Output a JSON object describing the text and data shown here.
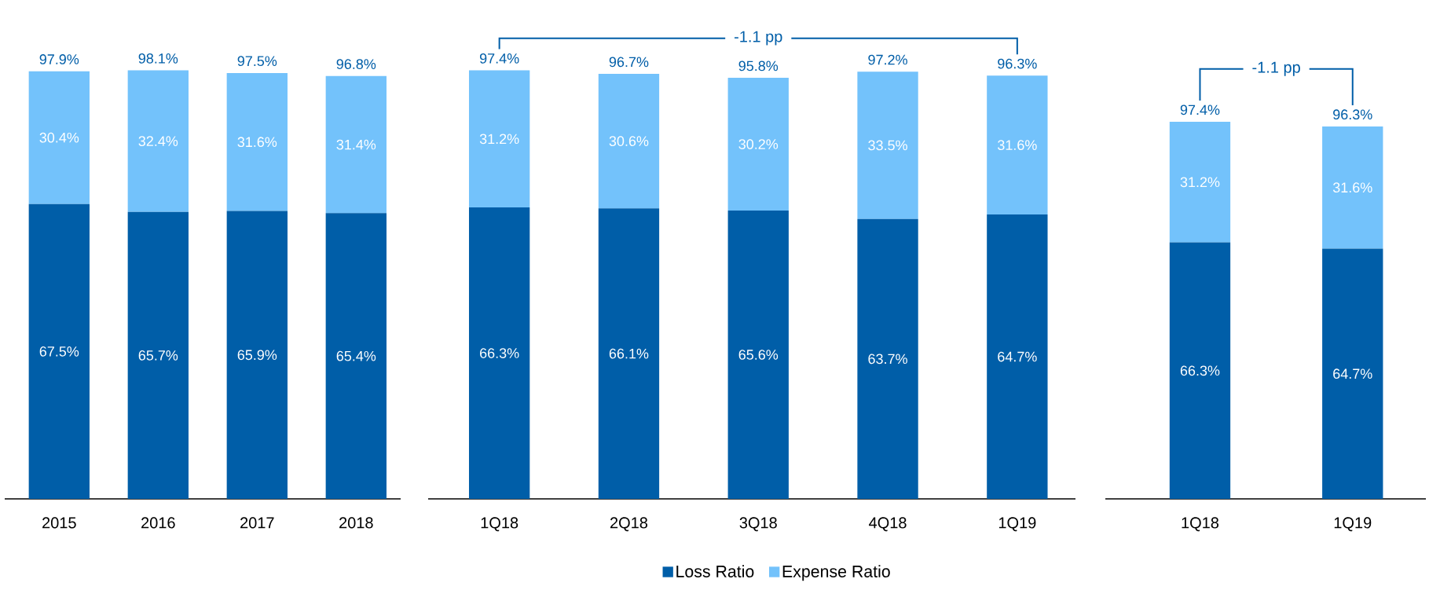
{
  "chart_data": [
    {
      "type": "bar",
      "stacked": true,
      "legend": false,
      "categories": [
        "2015",
        "2016",
        "2017",
        "2018"
      ],
      "series": [
        {
          "color": "#005ea8",
          "values": [
            67.5,
            65.7,
            65.9,
            65.4
          ],
          "value_labels": [
            "67.5%",
            "65.7%",
            "65.9%",
            "65.4%"
          ]
        },
        {
          "color": "#73c2fb",
          "values": [
            30.4,
            32.4,
            31.6,
            31.4
          ],
          "value_labels": [
            "30.4%",
            "32.4%",
            "31.6%",
            "31.4%"
          ]
        }
      ],
      "totals": [
        "97.9%",
        "98.1%",
        "97.5%",
        "96.8%"
      ]
    },
    {
      "type": "bar",
      "stacked": true,
      "legend": "bottom",
      "categories": [
        "1Q18",
        "2Q18",
        "3Q18",
        "4Q18",
        "1Q19"
      ],
      "series": [
        {
          "name": "Loss Ratio",
          "color": "#005ea8",
          "values": [
            66.3,
            66.1,
            65.6,
            63.7,
            64.7
          ],
          "value_labels": [
            "66.3%",
            "66.1%",
            "65.6%",
            "63.7%",
            "64.7%"
          ]
        },
        {
          "name": "Expense Ratio",
          "color": "#73c2fb",
          "values": [
            31.2,
            30.6,
            30.2,
            33.5,
            31.6
          ],
          "value_labels": [
            "31.2%",
            "30.6%",
            "30.2%",
            "33.5%",
            "31.6%"
          ]
        }
      ],
      "totals": [
        "97.4%",
        "96.7%",
        "95.8%",
        "97.2%",
        "96.3%"
      ],
      "annotations": [
        "-1.1 pp"
      ]
    },
    {
      "type": "bar",
      "stacked": true,
      "legend": false,
      "categories": [
        "1Q18",
        "1Q19"
      ],
      "series": [
        {
          "color": "#005ea8",
          "values": [
            66.3,
            64.7
          ],
          "value_labels": [
            "66.3%",
            "64.7%"
          ]
        },
        {
          "color": "#73c2fb",
          "values": [
            31.2,
            31.6
          ],
          "value_labels": [
            "31.2%",
            "31.6%"
          ]
        }
      ],
      "totals": [
        "97.4%",
        "96.3%"
      ],
      "annotations": [
        "-1.1 pp"
      ]
    }
  ]
}
